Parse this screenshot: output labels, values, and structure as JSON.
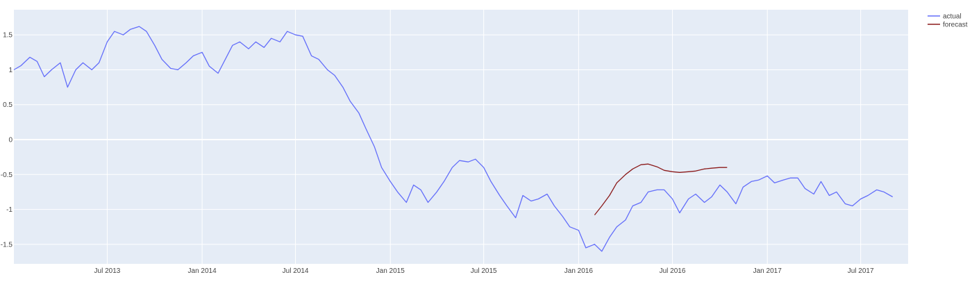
{
  "chart_data": {
    "type": "line",
    "title": "",
    "xlabel": "",
    "ylabel": "",
    "x_range": [
      "2013-01-01",
      "2017-10-01"
    ],
    "ylim": [
      -1.78,
      1.86
    ],
    "x_ticks": [
      {
        "date": "2013-07-01",
        "label": "Jul 2013"
      },
      {
        "date": "2014-01-01",
        "label": "Jan 2014"
      },
      {
        "date": "2014-07-01",
        "label": "Jul 2014"
      },
      {
        "date": "2015-01-01",
        "label": "Jan 2015"
      },
      {
        "date": "2015-07-01",
        "label": "Jul 2015"
      },
      {
        "date": "2016-01-01",
        "label": "Jan 2016"
      },
      {
        "date": "2016-07-01",
        "label": "Jul 2016"
      },
      {
        "date": "2017-01-01",
        "label": "Jan 2017"
      },
      {
        "date": "2017-07-01",
        "label": "Jul 2017"
      }
    ],
    "y_ticks": [
      {
        "value": 1.5,
        "label": "1.5"
      },
      {
        "value": 1,
        "label": "1"
      },
      {
        "value": 0.5,
        "label": "0.5"
      },
      {
        "value": 0,
        "label": "0"
      },
      {
        "value": -0.5,
        "label": "-0.5"
      },
      {
        "value": -1,
        "label": "-1"
      },
      {
        "value": -1.5,
        "label": "-1.5"
      }
    ],
    "grid": true,
    "legend_position": "top-right",
    "colors": {
      "plot_bg": "#e5ecf6",
      "grid": "#ffffff"
    },
    "series": [
      {
        "name": "actual",
        "color": "#636efa",
        "points": [
          [
            "2013-01-01",
            1.0
          ],
          [
            "2013-01-15",
            1.06
          ],
          [
            "2013-02-01",
            1.18
          ],
          [
            "2013-02-15",
            1.12
          ],
          [
            "2013-03-01",
            0.9
          ],
          [
            "2013-03-15",
            1.0
          ],
          [
            "2013-04-01",
            1.1
          ],
          [
            "2013-04-15",
            0.75
          ],
          [
            "2013-05-01",
            1.0
          ],
          [
            "2013-05-15",
            1.1
          ],
          [
            "2013-06-01",
            1.0
          ],
          [
            "2013-06-15",
            1.1
          ],
          [
            "2013-07-01",
            1.4
          ],
          [
            "2013-07-15",
            1.55
          ],
          [
            "2013-08-01",
            1.5
          ],
          [
            "2013-08-15",
            1.58
          ],
          [
            "2013-09-01",
            1.62
          ],
          [
            "2013-09-15",
            1.55
          ],
          [
            "2013-10-01",
            1.35
          ],
          [
            "2013-10-15",
            1.15
          ],
          [
            "2013-11-01",
            1.02
          ],
          [
            "2013-11-15",
            1.0
          ],
          [
            "2013-12-01",
            1.1
          ],
          [
            "2013-12-15",
            1.2
          ],
          [
            "2014-01-01",
            1.25
          ],
          [
            "2014-01-15",
            1.05
          ],
          [
            "2014-02-01",
            0.95
          ],
          [
            "2014-02-15",
            1.15
          ],
          [
            "2014-03-01",
            1.35
          ],
          [
            "2014-03-15",
            1.4
          ],
          [
            "2014-04-01",
            1.3
          ],
          [
            "2014-04-15",
            1.4
          ],
          [
            "2014-05-01",
            1.32
          ],
          [
            "2014-05-15",
            1.45
          ],
          [
            "2014-06-01",
            1.4
          ],
          [
            "2014-06-15",
            1.55
          ],
          [
            "2014-07-01",
            1.5
          ],
          [
            "2014-07-15",
            1.48
          ],
          [
            "2014-08-01",
            1.2
          ],
          [
            "2014-08-15",
            1.15
          ],
          [
            "2014-09-01",
            1.0
          ],
          [
            "2014-09-15",
            0.92
          ],
          [
            "2014-10-01",
            0.75
          ],
          [
            "2014-10-15",
            0.55
          ],
          [
            "2014-11-01",
            0.38
          ],
          [
            "2014-11-15",
            0.15
          ],
          [
            "2014-12-01",
            -0.1
          ],
          [
            "2014-12-15",
            -0.4
          ],
          [
            "2015-01-01",
            -0.6
          ],
          [
            "2015-01-15",
            -0.75
          ],
          [
            "2015-02-01",
            -0.9
          ],
          [
            "2015-02-15",
            -0.65
          ],
          [
            "2015-03-01",
            -0.72
          ],
          [
            "2015-03-15",
            -0.9
          ],
          [
            "2015-04-01",
            -0.75
          ],
          [
            "2015-04-15",
            -0.6
          ],
          [
            "2015-05-01",
            -0.4
          ],
          [
            "2015-05-15",
            -0.3
          ],
          [
            "2015-06-01",
            -0.32
          ],
          [
            "2015-06-15",
            -0.28
          ],
          [
            "2015-07-01",
            -0.4
          ],
          [
            "2015-07-15",
            -0.6
          ],
          [
            "2015-08-01",
            -0.8
          ],
          [
            "2015-08-15",
            -0.95
          ],
          [
            "2015-09-01",
            -1.12
          ],
          [
            "2015-09-15",
            -0.8
          ],
          [
            "2015-10-01",
            -0.88
          ],
          [
            "2015-10-15",
            -0.85
          ],
          [
            "2015-11-01",
            -0.78
          ],
          [
            "2015-11-15",
            -0.95
          ],
          [
            "2015-12-01",
            -1.1
          ],
          [
            "2015-12-15",
            -1.25
          ],
          [
            "2016-01-01",
            -1.3
          ],
          [
            "2016-01-15",
            -1.55
          ],
          [
            "2016-02-01",
            -1.5
          ],
          [
            "2016-02-15",
            -1.6
          ],
          [
            "2016-03-01",
            -1.4
          ],
          [
            "2016-03-15",
            -1.25
          ],
          [
            "2016-04-01",
            -1.15
          ],
          [
            "2016-04-15",
            -0.95
          ],
          [
            "2016-05-01",
            -0.9
          ],
          [
            "2016-05-15",
            -0.75
          ],
          [
            "2016-06-01",
            -0.72
          ],
          [
            "2016-06-15",
            -0.72
          ],
          [
            "2016-07-01",
            -0.85
          ],
          [
            "2016-07-15",
            -1.05
          ],
          [
            "2016-08-01",
            -0.85
          ],
          [
            "2016-08-15",
            -0.78
          ],
          [
            "2016-09-01",
            -0.9
          ],
          [
            "2016-09-15",
            -0.82
          ],
          [
            "2016-10-01",
            -0.65
          ],
          [
            "2016-10-15",
            -0.75
          ],
          [
            "2016-11-01",
            -0.92
          ],
          [
            "2016-11-15",
            -0.68
          ],
          [
            "2016-12-01",
            -0.6
          ],
          [
            "2016-12-15",
            -0.58
          ],
          [
            "2017-01-01",
            -0.52
          ],
          [
            "2017-01-15",
            -0.62
          ],
          [
            "2017-02-01",
            -0.58
          ],
          [
            "2017-02-15",
            -0.55
          ],
          [
            "2017-03-01",
            -0.55
          ],
          [
            "2017-03-15",
            -0.7
          ],
          [
            "2017-04-01",
            -0.78
          ],
          [
            "2017-04-15",
            -0.6
          ],
          [
            "2017-05-01",
            -0.8
          ],
          [
            "2017-05-15",
            -0.75
          ],
          [
            "2017-06-01",
            -0.92
          ],
          [
            "2017-06-15",
            -0.95
          ],
          [
            "2017-07-01",
            -0.85
          ],
          [
            "2017-07-15",
            -0.8
          ],
          [
            "2017-08-01",
            -0.72
          ],
          [
            "2017-08-15",
            -0.75
          ],
          [
            "2017-09-01",
            -0.82
          ]
        ]
      },
      {
        "name": "forecast",
        "color": "#8b1a1a",
        "points": [
          [
            "2016-02-01",
            -1.08
          ],
          [
            "2016-02-15",
            -0.95
          ],
          [
            "2016-03-01",
            -0.8
          ],
          [
            "2016-03-15",
            -0.62
          ],
          [
            "2016-04-01",
            -0.5
          ],
          [
            "2016-04-15",
            -0.42
          ],
          [
            "2016-05-01",
            -0.36
          ],
          [
            "2016-05-15",
            -0.35
          ],
          [
            "2016-06-01",
            -0.39
          ],
          [
            "2016-06-15",
            -0.44
          ],
          [
            "2016-07-01",
            -0.46
          ],
          [
            "2016-07-15",
            -0.47
          ],
          [
            "2016-08-01",
            -0.46
          ],
          [
            "2016-08-15",
            -0.45
          ],
          [
            "2016-09-01",
            -0.42
          ],
          [
            "2016-09-15",
            -0.41
          ],
          [
            "2016-10-01",
            -0.4
          ],
          [
            "2016-10-15",
            -0.4
          ]
        ]
      }
    ]
  }
}
